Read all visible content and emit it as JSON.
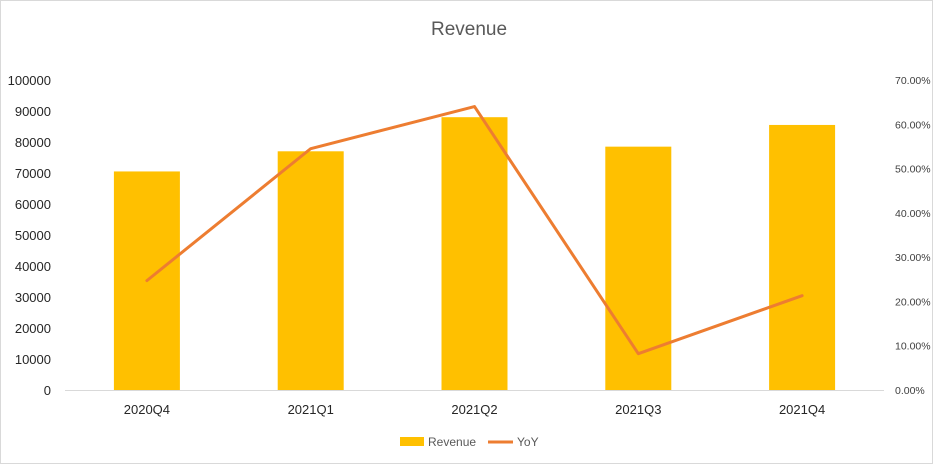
{
  "chart_data": {
    "type": "bar",
    "title": "Revenue",
    "categories": [
      "2020Q4",
      "2021Q1",
      "2021Q2",
      "2021Q3",
      "2021Q4"
    ],
    "series": [
      {
        "name": "Revenue",
        "kind": "bar",
        "axis": "left",
        "color": "#FFC000",
        "values": [
          70500,
          77000,
          88000,
          78500,
          85500
        ]
      },
      {
        "name": "YoY",
        "kind": "line",
        "axis": "right",
        "color": "#ED7D31",
        "values": [
          0.247,
          0.545,
          0.64,
          0.082,
          0.213
        ]
      }
    ],
    "left_axis": {
      "ylim": [
        0,
        100000
      ],
      "ticks": [
        "0",
        "10000",
        "20000",
        "30000",
        "40000",
        "50000",
        "60000",
        "70000",
        "80000",
        "90000",
        "100000"
      ]
    },
    "right_axis": {
      "ylim": [
        0,
        0.7
      ],
      "ticks": [
        "0.00%",
        "10.00%",
        "20.00%",
        "30.00%",
        "40.00%",
        "50.00%",
        "60.00%",
        "70.00%"
      ]
    },
    "grid": false,
    "legend": {
      "placement": "bottom-center",
      "entries": [
        "Revenue",
        "YoY"
      ]
    }
  }
}
